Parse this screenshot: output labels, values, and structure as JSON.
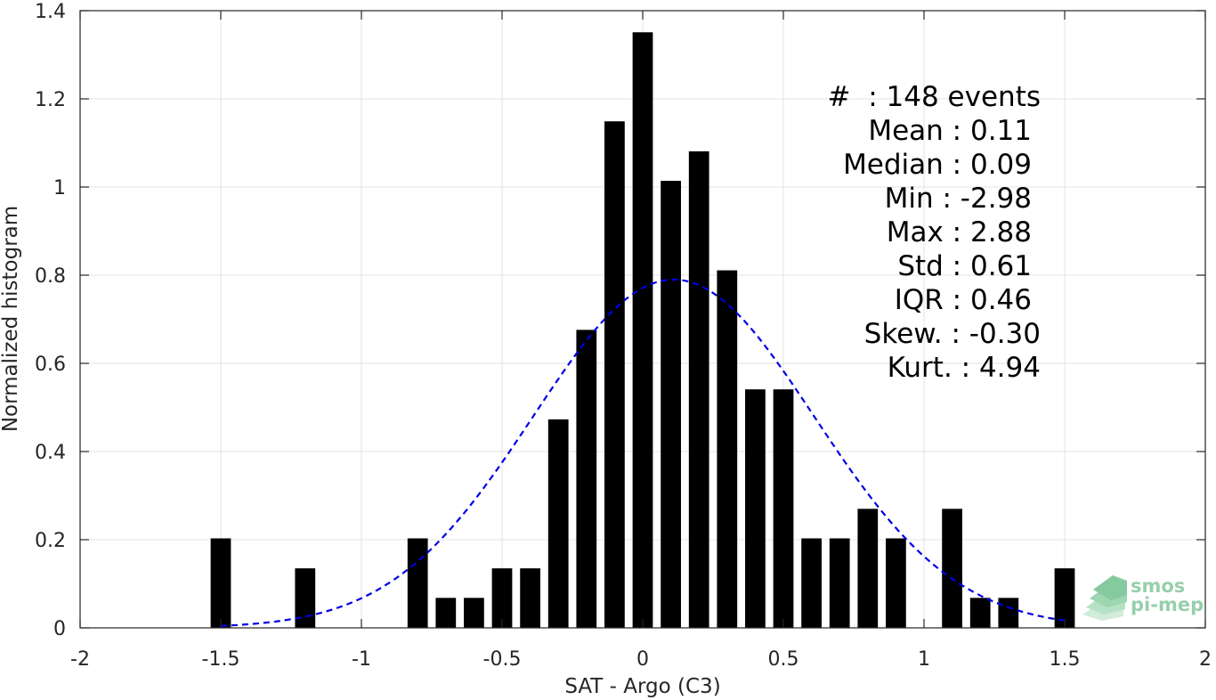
{
  "chart_data": {
    "type": "bar",
    "xlabel": "SAT - Argo (C3)",
    "ylabel": "Normalized histogram",
    "xlim": [
      -2,
      2
    ],
    "ylim": [
      0,
      1.4
    ],
    "xticks": [
      -2,
      -1.5,
      -1,
      -0.5,
      0,
      0.5,
      1,
      1.5,
      2
    ],
    "xtick_labels": [
      "-2",
      "-1.5",
      "-1",
      "-0.5",
      "0",
      "0.5",
      "1",
      "1.5",
      "2"
    ],
    "yticks": [
      0,
      0.2,
      0.4,
      0.6,
      0.8,
      1,
      1.2,
      1.4
    ],
    "ytick_labels": [
      "0",
      "0.2",
      "0.4",
      "0.6",
      "0.8",
      "1",
      "1.2",
      "1.4"
    ],
    "grid": true,
    "bar_color": "#000000",
    "bin_width": 0.1,
    "bars": [
      {
        "x": -1.5,
        "y": 0.203
      },
      {
        "x": -1.2,
        "y": 0.135
      },
      {
        "x": -0.8,
        "y": 0.203
      },
      {
        "x": -0.7,
        "y": 0.068
      },
      {
        "x": -0.6,
        "y": 0.068
      },
      {
        "x": -0.5,
        "y": 0.135
      },
      {
        "x": -0.4,
        "y": 0.135
      },
      {
        "x": -0.3,
        "y": 0.473
      },
      {
        "x": -0.2,
        "y": 0.676
      },
      {
        "x": -0.1,
        "y": 1.149
      },
      {
        "x": 0.0,
        "y": 1.351
      },
      {
        "x": 0.1,
        "y": 1.014
      },
      {
        "x": 0.2,
        "y": 1.081
      },
      {
        "x": 0.3,
        "y": 0.811
      },
      {
        "x": 0.4,
        "y": 0.541
      },
      {
        "x": 0.5,
        "y": 0.541
      },
      {
        "x": 0.6,
        "y": 0.203
      },
      {
        "x": 0.7,
        "y": 0.203
      },
      {
        "x": 0.8,
        "y": 0.27
      },
      {
        "x": 0.9,
        "y": 0.203
      },
      {
        "x": 1.1,
        "y": 0.27
      },
      {
        "x": 1.2,
        "y": 0.068
      },
      {
        "x": 1.3,
        "y": 0.068
      },
      {
        "x": 1.5,
        "y": 0.135
      }
    ],
    "fit_curve": {
      "kind": "gaussian",
      "mean": 0.11,
      "std": 0.5,
      "peak": 0.79,
      "x_range": [
        -1.5,
        1.5
      ],
      "color": "#0000e6",
      "style": "dashed"
    },
    "annotation_lines": [
      "#  : 148 events",
      "Mean : 0.11",
      "Median : 0.09",
      "Min : -2.98",
      "Max : 2.88",
      "Std : 0.61",
      "IQR : 0.46",
      "Skew. : -0.30",
      "Kurt. : 4.94"
    ],
    "logo_lines": [
      "smos",
      "pi-mep"
    ]
  }
}
